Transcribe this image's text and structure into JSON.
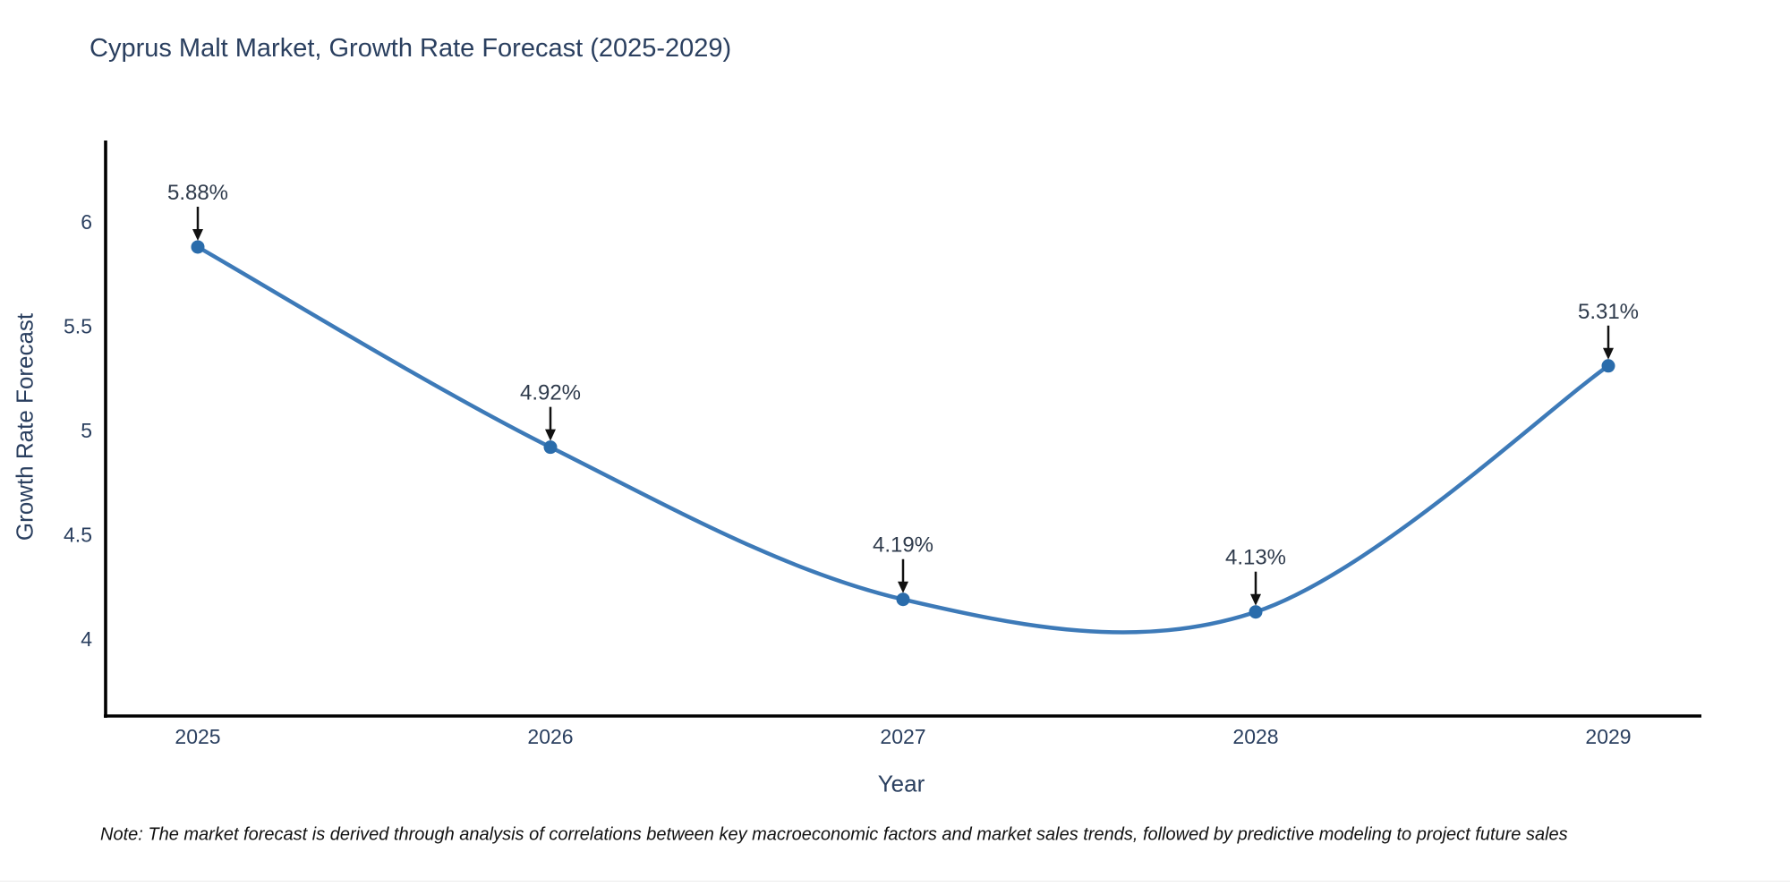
{
  "chart_data": {
    "type": "line",
    "line_shape": "spline",
    "title": "Cyprus Malt Market, Growth Rate Forecast (2025-2029)",
    "xlabel": "Year",
    "ylabel": "Growth Rate Forecast",
    "categories": [
      "2025",
      "2026",
      "2027",
      "2028",
      "2029"
    ],
    "series": [
      {
        "name": "Growth Rate Forecast",
        "values": [
          5.88,
          4.92,
          4.19,
          4.13,
          5.31
        ]
      }
    ],
    "point_labels": [
      "5.88%",
      "4.92%",
      "4.19%",
      "4.13%",
      "5.31%"
    ],
    "y_ticks": [
      4,
      4.5,
      5,
      5.5,
      6
    ],
    "ylim": [
      3.63,
      6.4
    ],
    "grid": false,
    "legend": "none",
    "annotation_style": "down-arrow-to-point",
    "colors": {
      "line": "#3d7ab8",
      "marker": "#2a6cab",
      "text": "#2a3f5f",
      "axis": "#000000",
      "annotation_text": "#2f3b4c",
      "annotation_arrow": "#111111",
      "note_text": "#111111"
    },
    "note": "Note: The market forecast is derived through analysis of correlations between key macroeconomic factors and market sales trends, followed by predictive modeling to project future sales"
  }
}
